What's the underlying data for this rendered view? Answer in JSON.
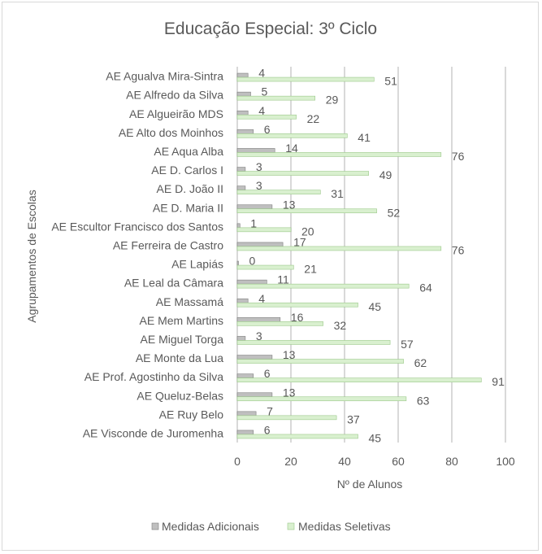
{
  "chart_data": {
    "type": "bar",
    "orientation": "horizontal",
    "title": "Educação Especial: 3º Ciclo",
    "xlabel": "Nº de Alunos",
    "ylabel": "Agrupamentos de Escolas",
    "xlim": [
      0,
      100
    ],
    "xticks": [
      0,
      20,
      40,
      60,
      80,
      100
    ],
    "grid": "vertical",
    "legend_position": "bottom",
    "categories": [
      "AE Agualva Mira-Sintra",
      "AE Alfredo da Silva",
      "AE Algueirão MDS",
      "AE Alto dos Moinhos",
      "AE Aqua Alba",
      "AE D. Carlos I",
      "AE D. João II",
      "AE D. Maria II",
      "AE Escultor Francisco dos Santos",
      "AE Ferreira de Castro",
      "AE Lapiás",
      "AE Leal da Câmara",
      "AE Massamá",
      "AE Mem Martins",
      "AE Miguel Torga",
      "AE Monte da Lua",
      "AE Prof. Agostinho da Silva",
      "AE Queluz-Belas",
      "AE Ruy Belo",
      "AE Visconde de Juromenha"
    ],
    "series": [
      {
        "name": "Medidas Adicionais",
        "color": "#bfbfbf",
        "values": [
          4,
          5,
          4,
          6,
          14,
          3,
          3,
          13,
          1,
          17,
          0,
          11,
          4,
          16,
          3,
          13,
          6,
          13,
          7,
          6
        ]
      },
      {
        "name": "Medidas Seletivas",
        "color": "#d9f0cf",
        "values": [
          51,
          29,
          22,
          41,
          76,
          49,
          31,
          52,
          20,
          76,
          21,
          64,
          45,
          32,
          57,
          62,
          91,
          63,
          37,
          45
        ]
      }
    ]
  }
}
